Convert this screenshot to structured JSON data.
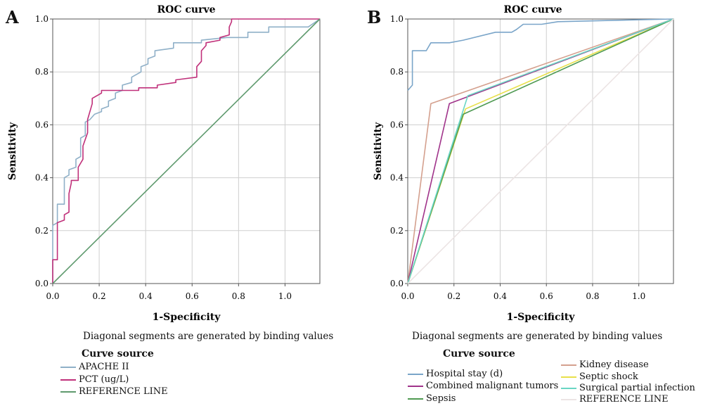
{
  "panels": [
    {
      "letter": "A",
      "note": "Diagonal segments are generated by binding values",
      "legend_title": "Curve source"
    },
    {
      "letter": "B",
      "note": "Diagonal segments are generated by binding values",
      "legend_title": "Curve source"
    }
  ],
  "chart_data": [
    {
      "type": "line",
      "title": "ROC curve",
      "xlabel": "1-Specificity",
      "ylabel": "Sensitivity",
      "xlim": [
        0,
        1.15
      ],
      "ylim": [
        0,
        1
      ],
      "x_ticks": [
        "0.0",
        "0.2",
        "0.4",
        "0.6",
        "0.8",
        "1.0"
      ],
      "y_ticks": [
        "0.0",
        "0.2",
        "0.4",
        "0.6",
        "0.8",
        "1.0"
      ],
      "grid": true,
      "legend_position": "below",
      "series": [
        {
          "name": "APACHE II",
          "color": "#8fb0c8",
          "points": [
            [
              0,
              0
            ],
            [
              0,
              0.22
            ],
            [
              0.02,
              0.23
            ],
            [
              0.02,
              0.3
            ],
            [
              0.05,
              0.3
            ],
            [
              0.05,
              0.4
            ],
            [
              0.07,
              0.41
            ],
            [
              0.07,
              0.43
            ],
            [
              0.1,
              0.44
            ],
            [
              0.1,
              0.47
            ],
            [
              0.12,
              0.48
            ],
            [
              0.12,
              0.55
            ],
            [
              0.14,
              0.56
            ],
            [
              0.14,
              0.61
            ],
            [
              0.16,
              0.62
            ],
            [
              0.17,
              0.63
            ],
            [
              0.18,
              0.64
            ],
            [
              0.21,
              0.65
            ],
            [
              0.21,
              0.66
            ],
            [
              0.24,
              0.67
            ],
            [
              0.24,
              0.69
            ],
            [
              0.27,
              0.7
            ],
            [
              0.27,
              0.72
            ],
            [
              0.3,
              0.73
            ],
            [
              0.3,
              0.75
            ],
            [
              0.34,
              0.76
            ],
            [
              0.34,
              0.78
            ],
            [
              0.38,
              0.8
            ],
            [
              0.38,
              0.82
            ],
            [
              0.41,
              0.83
            ],
            [
              0.41,
              0.85
            ],
            [
              0.44,
              0.86
            ],
            [
              0.44,
              0.88
            ],
            [
              0.52,
              0.89
            ],
            [
              0.52,
              0.91
            ],
            [
              0.64,
              0.91
            ],
            [
              0.64,
              0.92
            ],
            [
              0.75,
              0.93
            ],
            [
              0.84,
              0.93
            ],
            [
              0.84,
              0.95
            ],
            [
              0.93,
              0.95
            ],
            [
              0.93,
              0.97
            ],
            [
              1.1,
              0.97
            ],
            [
              1.15,
              1
            ]
          ]
        },
        {
          "name": "PCT (ug/L)",
          "color": "#c0307a",
          "points": [
            [
              0,
              0
            ],
            [
              0,
              0.09
            ],
            [
              0.02,
              0.09
            ],
            [
              0.02,
              0.23
            ],
            [
              0.05,
              0.24
            ],
            [
              0.05,
              0.26
            ],
            [
              0.07,
              0.27
            ],
            [
              0.07,
              0.34
            ],
            [
              0.08,
              0.38
            ],
            [
              0.08,
              0.39
            ],
            [
              0.11,
              0.39
            ],
            [
              0.11,
              0.44
            ],
            [
              0.13,
              0.47
            ],
            [
              0.13,
              0.52
            ],
            [
              0.15,
              0.57
            ],
            [
              0.15,
              0.62
            ],
            [
              0.17,
              0.68
            ],
            [
              0.17,
              0.7
            ],
            [
              0.21,
              0.72
            ],
            [
              0.21,
              0.73
            ],
            [
              0.37,
              0.73
            ],
            [
              0.37,
              0.74
            ],
            [
              0.45,
              0.74
            ],
            [
              0.45,
              0.75
            ],
            [
              0.53,
              0.76
            ],
            [
              0.53,
              0.77
            ],
            [
              0.62,
              0.78
            ],
            [
              0.62,
              0.82
            ],
            [
              0.64,
              0.84
            ],
            [
              0.64,
              0.88
            ],
            [
              0.66,
              0.9
            ],
            [
              0.66,
              0.91
            ],
            [
              0.72,
              0.92
            ],
            [
              0.72,
              0.93
            ],
            [
              0.76,
              0.94
            ],
            [
              0.76,
              0.97
            ],
            [
              0.77,
              0.99
            ],
            [
              0.77,
              1
            ],
            [
              1.15,
              1
            ]
          ]
        },
        {
          "name": "REFERENCE LINE",
          "color": "#5f9a6e",
          "points": [
            [
              0,
              0
            ],
            [
              1.15,
              1
            ]
          ]
        }
      ]
    },
    {
      "type": "line",
      "title": "ROC curve",
      "xlabel": "1-Specificity",
      "ylabel": "Sensitivity",
      "xlim": [
        0,
        1.15
      ],
      "ylim": [
        0,
        1
      ],
      "x_ticks": [
        "0.0",
        "0.2",
        "0.4",
        "0.6",
        "0.8",
        "1.0"
      ],
      "y_ticks": [
        "0.0",
        "0.2",
        "0.4",
        "0.6",
        "0.8",
        "1.0"
      ],
      "grid": true,
      "legend_position": "below",
      "series": [
        {
          "name": "Hospital stay (d)",
          "color": "#7aa5c9",
          "points": [
            [
              0,
              0.73
            ],
            [
              0.02,
              0.75
            ],
            [
              0.02,
              0.88
            ],
            [
              0.08,
              0.88
            ],
            [
              0.1,
              0.91
            ],
            [
              0.18,
              0.91
            ],
            [
              0.24,
              0.92
            ],
            [
              0.38,
              0.95
            ],
            [
              0.45,
              0.95
            ],
            [
              0.47,
              0.96
            ],
            [
              0.5,
              0.98
            ],
            [
              0.58,
              0.98
            ],
            [
              0.65,
              0.99
            ],
            [
              1.15,
              1
            ]
          ]
        },
        {
          "name": "Kidney disease",
          "color": "#d4a08e",
          "points": [
            [
              0,
              0
            ],
            [
              0.1,
              0.68
            ],
            [
              1.15,
              1
            ]
          ]
        },
        {
          "name": "Combined malignant tumors",
          "color": "#a0338a",
          "points": [
            [
              0,
              0
            ],
            [
              0.18,
              0.68
            ],
            [
              1.15,
              1
            ]
          ]
        },
        {
          "name": "Septic shock",
          "color": "#e8e04a",
          "points": [
            [
              0,
              0
            ],
            [
              0.25,
              0.66
            ],
            [
              1.15,
              1
            ]
          ]
        },
        {
          "name": "Sepsis",
          "color": "#4f9a52",
          "points": [
            [
              0,
              0
            ],
            [
              0.24,
              0.64
            ],
            [
              1.15,
              1
            ]
          ]
        },
        {
          "name": "Surgical partial infection",
          "color": "#6ad6c4",
          "points": [
            [
              0,
              0
            ],
            [
              0.26,
              0.71
            ],
            [
              1.15,
              1
            ]
          ]
        },
        {
          "name": "REFERENCE LINE",
          "color": "#ece4e4",
          "points": [
            [
              0,
              0
            ],
            [
              1.15,
              1
            ]
          ]
        }
      ]
    }
  ]
}
